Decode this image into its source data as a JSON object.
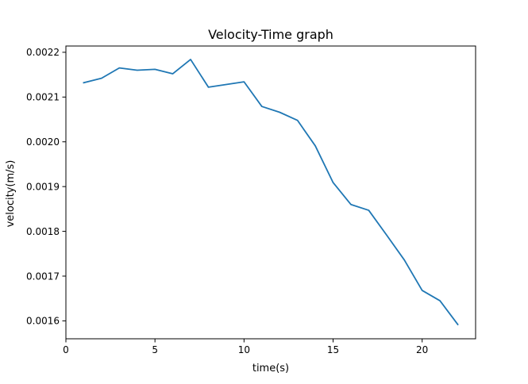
{
  "chart_data": {
    "type": "line",
    "title": "Velocity-Time graph",
    "xlabel": "time(s)",
    "ylabel": "velocity(m/s)",
    "xlim": [
      0,
      23
    ],
    "ylim": [
      0.00156,
      0.002214
    ],
    "xticks": [
      0,
      5,
      10,
      15,
      20
    ],
    "xtick_labels": [
      "0",
      "5",
      "10",
      "15",
      "20"
    ],
    "yticks": [
      0.0016,
      0.0017,
      0.0018,
      0.0019,
      0.002,
      0.0021,
      0.0022
    ],
    "ytick_labels": [
      "0.0016",
      "0.0017",
      "0.0018",
      "0.0019",
      "0.0020",
      "0.0021",
      "0.0022"
    ],
    "grid": false,
    "series": [
      {
        "color": "#1f77b4",
        "x": [
          1,
          2,
          3,
          4,
          5,
          6,
          7,
          8,
          9,
          10,
          11,
          12,
          13,
          14,
          15,
          16,
          17,
          18,
          19,
          20,
          21,
          22
        ],
        "y": [
          0.002132,
          0.002142,
          0.002165,
          0.00216,
          0.002162,
          0.002152,
          0.002184,
          0.002122,
          0.002128,
          0.002134,
          0.002079,
          0.002066,
          0.002048,
          0.001991,
          0.001909,
          0.00186,
          0.001847,
          0.001792,
          0.001736,
          0.001668,
          0.001645,
          0.001592
        ]
      }
    ]
  }
}
